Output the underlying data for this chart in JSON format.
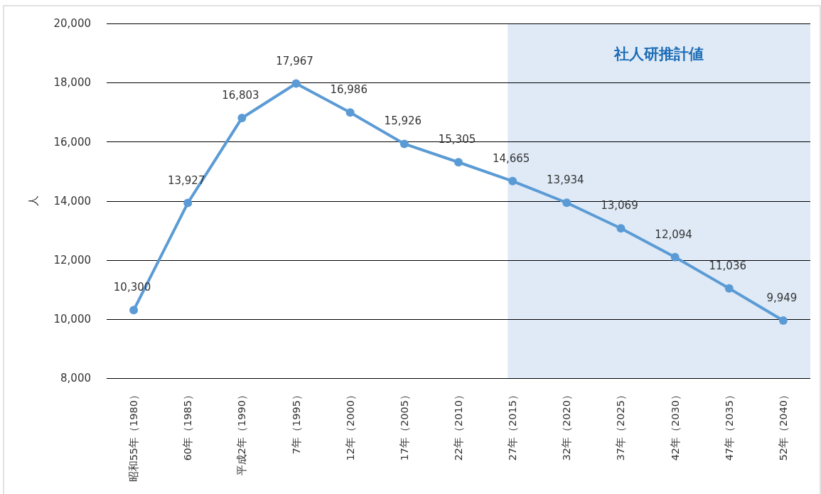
{
  "chart_data": {
    "type": "line",
    "ylabel": "人",
    "categories": [
      "昭和55年（1980）",
      "60年（1985）",
      "平成2年（1990）",
      "7年（1995）",
      "12年（2000）",
      "17年（2005）",
      "22年（2010）",
      "27年（2015）",
      "32年（2020）",
      "37年（2025）",
      "42年（2030）",
      "47年（2035）",
      "52年（2040）"
    ],
    "series": [
      {
        "color": "#5b9bd5",
        "values": [
          10300,
          13927,
          16803,
          17967,
          16986,
          15926,
          15305,
          14665,
          13934,
          13069,
          12094,
          11036,
          9949
        ],
        "value_labels": [
          "10,300",
          "13,927",
          "16,803",
          "17,967",
          "16,986",
          "15,926",
          "15,305",
          "14,665",
          "13,934",
          "13,069",
          "12,094",
          "11,036",
          "9,949"
        ]
      }
    ],
    "ylim": [
      8000,
      20000
    ],
    "yticks": [
      {
        "value": 8000,
        "label": "8,000"
      },
      {
        "value": 10000,
        "label": "10,000"
      },
      {
        "value": 12000,
        "label": "12,000"
      },
      {
        "value": 14000,
        "label": "14,000"
      },
      {
        "value": 16000,
        "label": "16,000"
      },
      {
        "value": 18000,
        "label": "18,000"
      },
      {
        "value": 20000,
        "label": "20,000"
      }
    ],
    "grid": "y",
    "marker": "circle",
    "line_style": "solid",
    "bands": [
      {
        "axis": "x",
        "from": "27年（2015）",
        "to": "52年（2040）",
        "label": "社人研推計値",
        "color": "#dfeaf6"
      }
    ]
  }
}
